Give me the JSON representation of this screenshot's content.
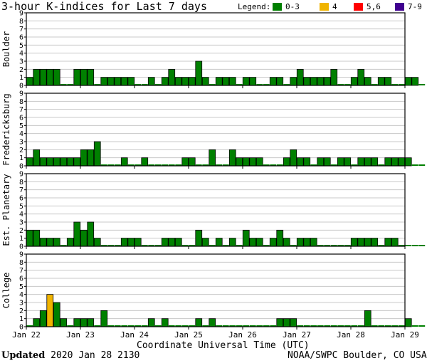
{
  "title": "3-hour K-indices for Last 7 days",
  "legend": {
    "label": "Legend:",
    "items": [
      {
        "label": "0-3",
        "color": "#008000"
      },
      {
        "label": "4",
        "color": "#f0b400"
      },
      {
        "label": "5,6",
        "color": "#ff0000"
      },
      {
        "label": "7-9",
        "color": "#400090"
      }
    ]
  },
  "footer": {
    "updated_label": "Updated",
    "updated_value": "2020 Jan 28 2130",
    "credit": "NOAA/SWPC Boulder, CO USA"
  },
  "chart_data": {
    "type": "bar",
    "xlabel": "Coordinate Universal Time (UTC)",
    "x_tick_labels": [
      "Jan 22",
      "Jan 23",
      "Jan 24",
      "Jan 25",
      "Jan 26",
      "Jan 27",
      "Jan 28",
      "Jan 29"
    ],
    "ylim": [
      0,
      9
    ],
    "y_tick_labels": [
      "0",
      "1",
      "2",
      "3",
      "4",
      "5",
      "6",
      "7",
      "8",
      "9"
    ],
    "intervals_per_day": 8,
    "panels": [
      {
        "name": "Boulder",
        "values": [
          1,
          2,
          2,
          2,
          2,
          0,
          0,
          2,
          2,
          2,
          0,
          1,
          1,
          1,
          1,
          1,
          0,
          0,
          1,
          0,
          1,
          2,
          1,
          1,
          1,
          3,
          1,
          0,
          1,
          1,
          1,
          0,
          1,
          1,
          0,
          0,
          1,
          1,
          0,
          1,
          2,
          1,
          1,
          1,
          1,
          2,
          0,
          0,
          1,
          2,
          1,
          0,
          1,
          1,
          0,
          0,
          1,
          1,
          0
        ]
      },
      {
        "name": "Fredericksburg",
        "values": [
          1,
          2,
          1,
          1,
          1,
          1,
          1,
          1,
          2,
          2,
          3,
          0,
          0,
          0,
          1,
          0,
          0,
          1,
          0,
          0,
          0,
          0,
          0,
          1,
          1,
          0,
          0,
          2,
          0,
          0,
          2,
          1,
          1,
          1,
          1,
          0,
          0,
          0,
          1,
          2,
          1,
          1,
          0,
          1,
          1,
          0,
          1,
          1,
          0,
          1,
          1,
          1,
          0,
          1,
          1,
          1,
          1,
          0,
          0
        ]
      },
      {
        "name": "Est. Planetary",
        "values": [
          2,
          2,
          1,
          1,
          1,
          0,
          1,
          3,
          2,
          3,
          1,
          0,
          0,
          0,
          1,
          1,
          1,
          0,
          0,
          0,
          1,
          1,
          1,
          0,
          0,
          2,
          1,
          0,
          1,
          0,
          1,
          0,
          2,
          1,
          1,
          0,
          1,
          2,
          1,
          0,
          1,
          1,
          1,
          0,
          0,
          0,
          0,
          0,
          1,
          1,
          1,
          1,
          0,
          1,
          1,
          0,
          0,
          0,
          0
        ]
      },
      {
        "name": "College",
        "values": [
          0,
          1,
          2,
          4,
          3,
          1,
          0,
          1,
          1,
          1,
          0,
          2,
          0,
          0,
          0,
          0,
          0,
          0,
          1,
          0,
          1,
          0,
          0,
          0,
          0,
          1,
          0,
          1,
          0,
          0,
          0,
          0,
          0,
          0,
          0,
          0,
          0,
          1,
          1,
          1,
          0,
          0,
          0,
          0,
          0,
          0,
          0,
          0,
          0,
          0,
          2,
          0,
          0,
          0,
          0,
          0,
          1,
          0,
          0
        ]
      }
    ],
    "grid": "horizontal"
  }
}
